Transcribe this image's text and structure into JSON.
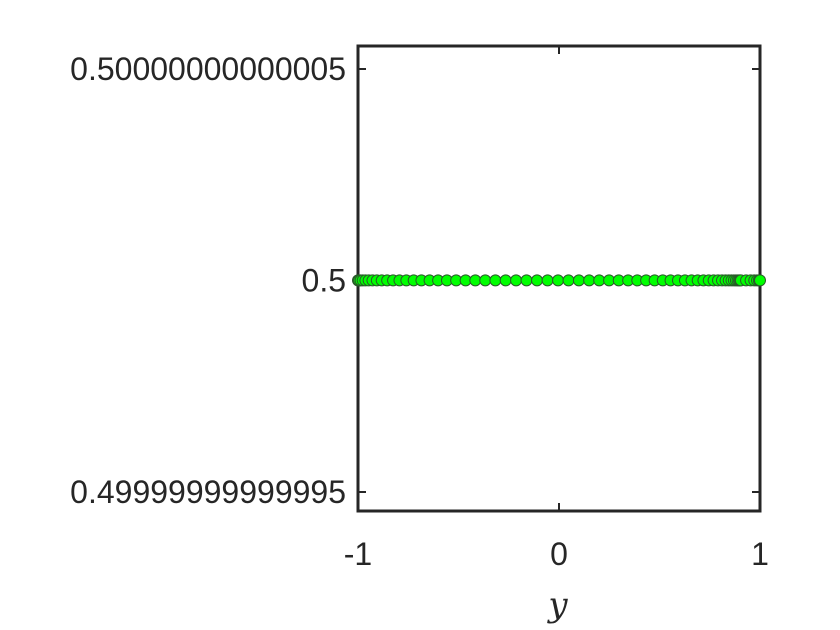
{
  "chart_data": {
    "type": "scatter",
    "title": "",
    "xlabel": "y",
    "ylabel": "",
    "xlim": [
      -1,
      1
    ],
    "ylim": [
      0.49999999999995,
      0.50000000000005
    ],
    "x_ticks": [
      -1,
      0,
      1
    ],
    "x_tick_labels": [
      "-1",
      "0",
      "1"
    ],
    "y_ticks": [
      0.49999999999995,
      0.5,
      0.50000000000005
    ],
    "y_tick_labels": [
      "0.49999999999995",
      "0.5",
      "0.50000000000005"
    ],
    "grid": false,
    "marker": "circle",
    "marker_color": "#00ff00",
    "marker_edge_color": "#2a5a2a",
    "series": [
      {
        "x": [
          -1.0,
          -0.9985,
          -0.9941,
          -0.9867,
          -0.9763,
          -0.9631,
          -0.947,
          -0.928,
          -0.9063,
          -0.882,
          -0.855,
          -0.8256,
          -0.7937,
          -0.7595,
          -0.723,
          -0.6845,
          -0.6439,
          -0.6015,
          -0.5574,
          -0.5117,
          -0.4646,
          -0.4163,
          -0.3668,
          -0.3164,
          -0.2653,
          -0.2136,
          -0.1615,
          -0.1093,
          -0.0569,
          -0.0047,
          0.0474,
          0.099,
          0.15,
          0.2,
          0.2492,
          0.2973,
          0.3441,
          0.3895,
          0.4334,
          0.4757,
          0.5163,
          0.555,
          0.5918,
          0.6266,
          0.6593,
          0.69,
          0.7185,
          0.7449,
          0.769,
          0.791,
          0.8109,
          0.8287,
          0.8444,
          0.8582,
          0.8701,
          0.8802,
          0.8886,
          0.8955,
          0.9009,
          0.905,
          0.9306,
          0.9531,
          0.9714,
          0.9851,
          0.9942,
          0.9985,
          1.0
        ],
        "y_value": 0.5
      }
    ]
  }
}
